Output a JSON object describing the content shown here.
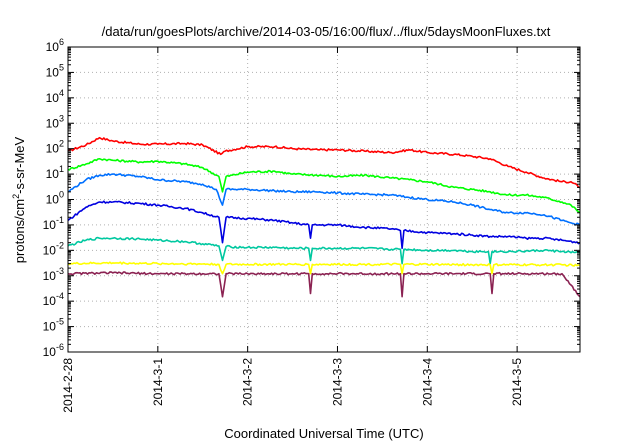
{
  "chart_data": {
    "type": "line",
    "title": "/data/run/goesPlots/archive/2014-03-05/16:00/flux/../flux/5daysMoonFluxes.txt",
    "xlabel": "Coordinated Universal Time (UTC)",
    "ylabel_parts": [
      "protons/cm",
      "2",
      "-s-sr-MeV"
    ],
    "ylabel": "protons/cm2-s-sr-MeV",
    "y_scale": "log",
    "ylim": [
      1e-06,
      1000000.0
    ],
    "x_unit": "days from 2014-2-28 00:00 UTC",
    "xlim": [
      0,
      5.7
    ],
    "grid": true,
    "x_ticks": [
      {
        "x": 0,
        "label": "2014-2-28"
      },
      {
        "x": 1,
        "label": "2014-3-1"
      },
      {
        "x": 2,
        "label": "2014-3-2"
      },
      {
        "x": 3,
        "label": "2014-3-3"
      },
      {
        "x": 4,
        "label": "2014-3-4"
      },
      {
        "x": 5,
        "label": "2014-3-5"
      }
    ],
    "y_ticks": [
      {
        "exp": -6,
        "label": "10",
        "sup": "-6"
      },
      {
        "exp": -5,
        "label": "10",
        "sup": "-5"
      },
      {
        "exp": -4,
        "label": "10",
        "sup": "-4"
      },
      {
        "exp": -3,
        "label": "10",
        "sup": "-3"
      },
      {
        "exp": -2,
        "label": "10",
        "sup": "-2"
      },
      {
        "exp": -1,
        "label": "10",
        "sup": "-1"
      },
      {
        "exp": 0,
        "label": "10",
        "sup": "0"
      },
      {
        "exp": 1,
        "label": "10",
        "sup": "1"
      },
      {
        "exp": 2,
        "label": "10",
        "sup": "2"
      },
      {
        "exp": 3,
        "label": "10",
        "sup": "3"
      },
      {
        "exp": 4,
        "label": "10",
        "sup": "4"
      },
      {
        "exp": 5,
        "label": "10",
        "sup": "5"
      },
      {
        "exp": 6,
        "label": "10",
        "sup": "6"
      }
    ],
    "series": [
      {
        "color": "#ff0000",
        "points": [
          [
            0,
            80
          ],
          [
            0.2,
            140
          ],
          [
            0.35,
            270
          ],
          [
            0.5,
            200
          ],
          [
            0.8,
            150
          ],
          [
            1.0,
            150
          ],
          [
            1.3,
            160
          ],
          [
            1.5,
            140
          ],
          [
            1.7,
            60
          ],
          [
            1.75,
            80
          ],
          [
            2.0,
            120
          ],
          [
            2.3,
            120
          ],
          [
            2.5,
            100
          ],
          [
            2.8,
            90
          ],
          [
            3.0,
            90
          ],
          [
            3.3,
            80
          ],
          [
            3.6,
            70
          ],
          [
            3.8,
            90
          ],
          [
            4.0,
            70
          ],
          [
            4.3,
            60
          ],
          [
            4.5,
            50
          ],
          [
            4.7,
            40
          ],
          [
            4.9,
            20
          ],
          [
            5.1,
            12
          ],
          [
            5.3,
            7
          ],
          [
            5.5,
            5
          ],
          [
            5.6,
            5
          ],
          [
            5.7,
            3
          ]
        ],
        "dips": []
      },
      {
        "color": "#00ff00",
        "points": [
          [
            0,
            15
          ],
          [
            0.2,
            25
          ],
          [
            0.35,
            40
          ],
          [
            0.5,
            35
          ],
          [
            0.8,
            30
          ],
          [
            1.0,
            32
          ],
          [
            1.3,
            25
          ],
          [
            1.5,
            18
          ],
          [
            1.68,
            8
          ],
          [
            1.72,
            2
          ],
          [
            1.76,
            8
          ],
          [
            2.0,
            12
          ],
          [
            2.3,
            13
          ],
          [
            2.5,
            10
          ],
          [
            2.8,
            9
          ],
          [
            3.0,
            8
          ],
          [
            3.3,
            9
          ],
          [
            3.6,
            7
          ],
          [
            3.8,
            6
          ],
          [
            4.0,
            5
          ],
          [
            4.3,
            3
          ],
          [
            4.5,
            2.5
          ],
          [
            4.7,
            2
          ],
          [
            4.9,
            1.5
          ],
          [
            5.1,
            1.5
          ],
          [
            5.3,
            1.2
          ],
          [
            5.5,
            0.8
          ],
          [
            5.6,
            0.6
          ],
          [
            5.7,
            0.3
          ]
        ],
        "dips": []
      },
      {
        "color": "#0070ff",
        "points": [
          [
            0,
            2
          ],
          [
            0.2,
            6
          ],
          [
            0.35,
            9
          ],
          [
            0.5,
            10
          ],
          [
            0.8,
            8
          ],
          [
            1.0,
            6
          ],
          [
            1.3,
            5
          ],
          [
            1.5,
            4
          ],
          [
            1.65,
            2.5
          ],
          [
            1.72,
            0.6
          ],
          [
            1.76,
            2.5
          ],
          [
            2.0,
            2.5
          ],
          [
            2.3,
            2.2
          ],
          [
            2.5,
            2
          ],
          [
            2.8,
            2
          ],
          [
            3.0,
            1.8
          ],
          [
            3.3,
            1.6
          ],
          [
            3.6,
            1.5
          ],
          [
            3.8,
            1.2
          ],
          [
            4.0,
            1
          ],
          [
            4.3,
            0.8
          ],
          [
            4.5,
            0.6
          ],
          [
            4.7,
            0.4
          ],
          [
            4.9,
            0.3
          ],
          [
            5.1,
            0.3
          ],
          [
            5.3,
            0.25
          ],
          [
            5.5,
            0.15
          ],
          [
            5.6,
            0.12
          ],
          [
            5.7,
            0.1
          ]
        ],
        "dips": []
      },
      {
        "color": "#0000e0",
        "points": [
          [
            0,
            0.15
          ],
          [
            0.2,
            0.5
          ],
          [
            0.35,
            0.8
          ],
          [
            0.5,
            0.8
          ],
          [
            0.8,
            0.7
          ],
          [
            1.0,
            0.6
          ],
          [
            1.3,
            0.45
          ],
          [
            1.5,
            0.3
          ],
          [
            1.68,
            0.2
          ],
          [
            1.72,
            0.02
          ],
          [
            1.76,
            0.2
          ],
          [
            2.0,
            0.18
          ],
          [
            2.3,
            0.15
          ],
          [
            2.5,
            0.12
          ],
          [
            2.68,
            0.1
          ],
          [
            2.7,
            0.03
          ],
          [
            2.72,
            0.1
          ],
          [
            3.0,
            0.1
          ],
          [
            3.3,
            0.08
          ],
          [
            3.6,
            0.07
          ],
          [
            3.7,
            0.06
          ],
          [
            3.72,
            0.012
          ],
          [
            3.74,
            0.06
          ],
          [
            4.0,
            0.05
          ],
          [
            4.3,
            0.045
          ],
          [
            4.5,
            0.04
          ],
          [
            4.7,
            0.035
          ],
          [
            4.9,
            0.035
          ],
          [
            5.1,
            0.03
          ],
          [
            5.3,
            0.03
          ],
          [
            5.5,
            0.025
          ],
          [
            5.7,
            0.02
          ]
        ],
        "dips": []
      },
      {
        "color": "#00c8a0",
        "points": [
          [
            0,
            0.015
          ],
          [
            0.2,
            0.025
          ],
          [
            0.35,
            0.03
          ],
          [
            0.5,
            0.03
          ],
          [
            0.8,
            0.028
          ],
          [
            1.0,
            0.025
          ],
          [
            1.3,
            0.022
          ],
          [
            1.5,
            0.018
          ],
          [
            1.68,
            0.015
          ],
          [
            1.72,
            0.004
          ],
          [
            1.76,
            0.014
          ],
          [
            2.0,
            0.013
          ],
          [
            2.3,
            0.013
          ],
          [
            2.5,
            0.012
          ],
          [
            2.68,
            0.012
          ],
          [
            2.7,
            0.004
          ],
          [
            2.72,
            0.012
          ],
          [
            3.0,
            0.012
          ],
          [
            3.3,
            0.012
          ],
          [
            3.6,
            0.011
          ],
          [
            3.7,
            0.011
          ],
          [
            3.72,
            0.003
          ],
          [
            3.74,
            0.011
          ],
          [
            4.0,
            0.01
          ],
          [
            4.3,
            0.01
          ],
          [
            4.5,
            0.009
          ],
          [
            4.68,
            0.009
          ],
          [
            4.7,
            0.003
          ],
          [
            4.72,
            0.009
          ],
          [
            5.0,
            0.009
          ],
          [
            5.3,
            0.01
          ],
          [
            5.5,
            0.009
          ],
          [
            5.7,
            0.008
          ]
        ],
        "dips": []
      },
      {
        "color": "#ffff00",
        "points": [
          [
            0,
            0.003
          ],
          [
            0.5,
            0.0032
          ],
          [
            1.0,
            0.003
          ],
          [
            1.5,
            0.0029
          ],
          [
            1.68,
            0.0028
          ],
          [
            1.72,
            0.0012
          ],
          [
            1.76,
            0.0028
          ],
          [
            2.0,
            0.0028
          ],
          [
            2.5,
            0.0028
          ],
          [
            2.68,
            0.0028
          ],
          [
            2.7,
            0.0012
          ],
          [
            2.72,
            0.0028
          ],
          [
            3.0,
            0.0028
          ],
          [
            3.5,
            0.0028
          ],
          [
            3.7,
            0.0028
          ],
          [
            3.72,
            0.0012
          ],
          [
            3.74,
            0.0028
          ],
          [
            4.0,
            0.0028
          ],
          [
            4.5,
            0.0027
          ],
          [
            4.7,
            0.0027
          ],
          [
            4.72,
            0.0012
          ],
          [
            4.74,
            0.0027
          ],
          [
            5.0,
            0.0027
          ],
          [
            5.5,
            0.0027
          ],
          [
            5.7,
            0.0025
          ]
        ],
        "dips": []
      },
      {
        "color": "#8b2252",
        "points": [
          [
            0,
            0.0012
          ],
          [
            0.5,
            0.0013
          ],
          [
            1.0,
            0.0012
          ],
          [
            1.5,
            0.0012
          ],
          [
            1.68,
            0.0012
          ],
          [
            1.72,
            0.00015
          ],
          [
            1.76,
            0.0012
          ],
          [
            2.0,
            0.0012
          ],
          [
            2.5,
            0.0012
          ],
          [
            2.68,
            0.0012
          ],
          [
            2.7,
            0.0002
          ],
          [
            2.72,
            0.0012
          ],
          [
            3.0,
            0.0012
          ],
          [
            3.5,
            0.0012
          ],
          [
            3.7,
            0.0012
          ],
          [
            3.72,
            0.00015
          ],
          [
            3.74,
            0.0012
          ],
          [
            4.0,
            0.0012
          ],
          [
            4.5,
            0.0012
          ],
          [
            4.7,
            0.0012
          ],
          [
            4.72,
            0.0002
          ],
          [
            4.74,
            0.0012
          ],
          [
            5.0,
            0.0012
          ],
          [
            5.5,
            0.0012
          ],
          [
            5.7,
            0.00015
          ]
        ],
        "dips": []
      }
    ]
  }
}
